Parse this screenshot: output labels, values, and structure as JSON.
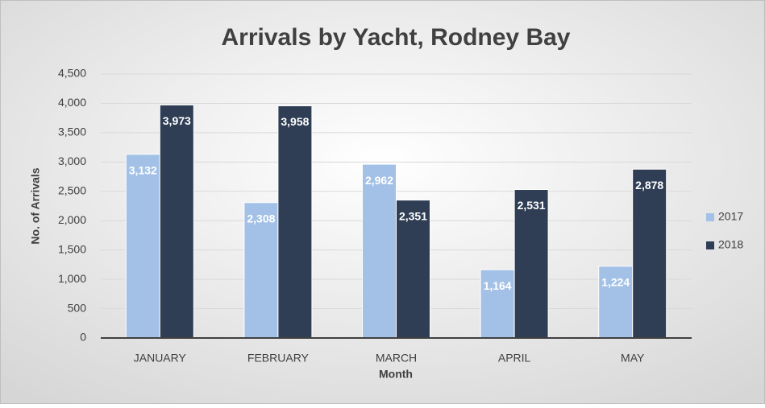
{
  "chart_data": {
    "type": "bar",
    "title": "Arrivals by Yacht, Rodney Bay",
    "x_label": "Month",
    "y_label": "No. of Arrivals",
    "categories": [
      "JANUARY",
      "FEBRUARY",
      "MARCH",
      "APRIL",
      "MAY"
    ],
    "series": [
      {
        "name": "2017",
        "color": "#a3c1e6",
        "values": [
          3132,
          2308,
          2962,
          1164,
          1224
        ],
        "value_labels": [
          "3,132",
          "2,308",
          "2,962",
          "1,164",
          "1,224"
        ]
      },
      {
        "name": "2018",
        "color": "#2f3e55",
        "values": [
          3973,
          3958,
          2351,
          2531,
          2878
        ],
        "value_labels": [
          "3,973",
          "3,958",
          "2,351",
          "2,531",
          "2,878"
        ]
      }
    ],
    "ylim": [
      0,
      4500
    ],
    "yticks": [
      0,
      500,
      {
        "value": 1000,
        "label": "1,000"
      },
      {
        "value": 1500,
        "label": "1,500"
      },
      {
        "value": 2000,
        "label": "2,000"
      },
      {
        "value": 2500,
        "label": "2,500"
      },
      {
        "value": 3000,
        "label": "3,000"
      },
      {
        "value": 3500,
        "label": "3,500"
      },
      {
        "value": 4000,
        "label": "4,000"
      },
      {
        "value": 4500,
        "label": "4,500"
      }
    ],
    "grid": true,
    "legend": "right"
  }
}
